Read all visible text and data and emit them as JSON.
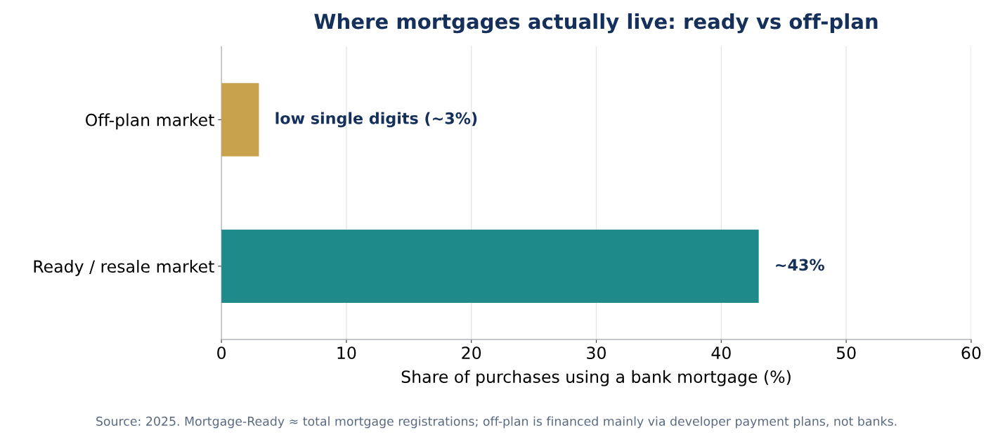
{
  "chart_data": {
    "type": "bar",
    "orientation": "horizontal",
    "title": "Where mortgages actually live: ready vs off-plan",
    "xlabel": "Share of purchases using a bank mortgage (%)",
    "categories": [
      "Off-plan market",
      "Ready / resale market"
    ],
    "values": [
      3,
      43
    ],
    "colors": [
      "#c8a24c",
      "#1f8a8a"
    ],
    "value_labels": [
      "low single digits (~3%)",
      "~43%"
    ],
    "xlim": [
      0,
      60
    ],
    "xticks": [
      0,
      10,
      20,
      30,
      40,
      50,
      60
    ],
    "grid": "x",
    "legend": false,
    "annotations": [
      "Source: 2025. Mortgage-Ready ≈ total mortgage registrations; off-plan is financed mainly via developer payment plans, not banks."
    ]
  }
}
